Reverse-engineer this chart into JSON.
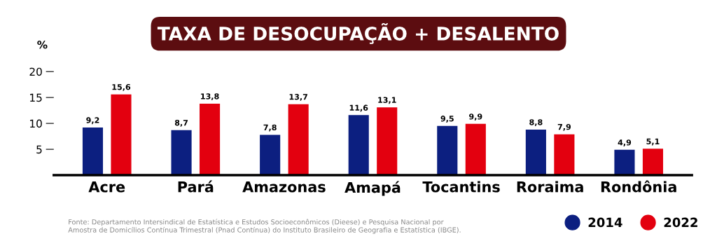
{
  "chart_data": {
    "type": "bar",
    "title": "TAXA DE DESOCUPAÇÃO + DESALENTO",
    "ylabel": "%",
    "categories": [
      "Acre",
      "Pará",
      "Amazonas",
      "Amapá",
      "Tocantins",
      "Roraima",
      "Rondônia"
    ],
    "series": [
      {
        "name": "2014",
        "color": "#0c1f80",
        "values": [
          9.2,
          8.7,
          7.8,
          11.6,
          9.5,
          8.8,
          4.9
        ],
        "value_labels": [
          "9,2",
          "8,7",
          "7,8",
          "11,6",
          "9,5",
          "8,8",
          "4,9"
        ]
      },
      {
        "name": "2022",
        "color": "#e3000f",
        "values": [
          15.6,
          13.8,
          13.7,
          13.1,
          9.9,
          7.9,
          5.1
        ],
        "value_labels": [
          "15,6",
          "13,8",
          "13,7",
          "13,1",
          "9,9",
          "7,9",
          "5,1"
        ]
      }
    ],
    "ylim": [
      0,
      20
    ],
    "yticks": [
      5,
      10,
      15,
      20
    ],
    "grid": false,
    "legend": "bottom right",
    "annotations": [
      "Fonte: Departamento Intersindical de Estatística e Estudos Socioeconômicos (Dieese) e Pesquisa Nacional por\nAmostra de Domicílios Contínua Trimestral (Pnad Contínua) do Instituto Brasileiro de Geografia e Estatística (IBGE)."
    ]
  }
}
